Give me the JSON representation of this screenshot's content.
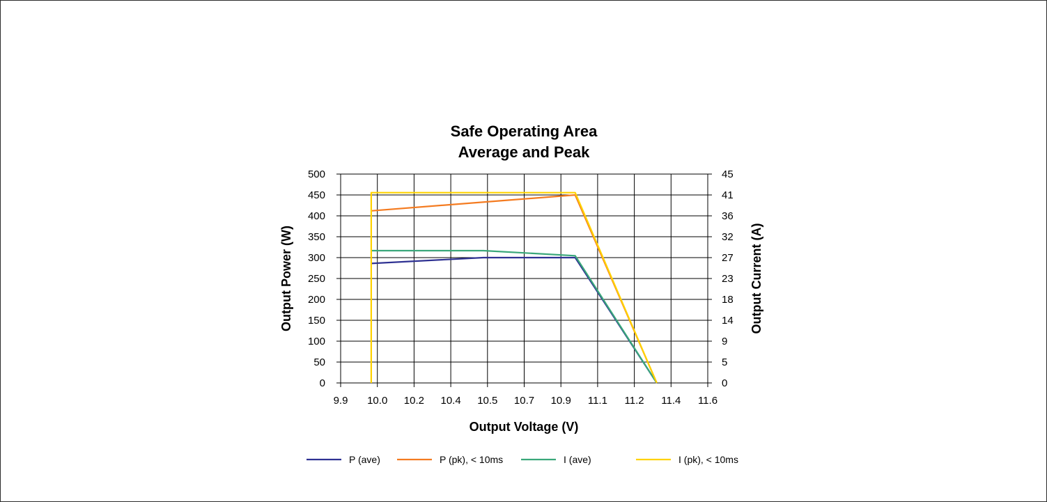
{
  "chart_data": {
    "type": "line",
    "title": [
      "Safe Operating Area",
      "Average and Peak"
    ],
    "xlabel": "Output Voltage (V)",
    "ylabel": "Output Power (W)",
    "y2label": "Output Current (A)",
    "x_tick_labels": [
      "9.9",
      "10.0",
      "10.2",
      "10.4",
      "10.5",
      "10.7",
      "10.9",
      "11.1",
      "11.2",
      "11.4",
      "11.6"
    ],
    "y_tick_labels": [
      "0",
      "50",
      "100",
      "150",
      "200",
      "250",
      "300",
      "350",
      "400",
      "450",
      "500"
    ],
    "y2_tick_labels": [
      "0",
      "5",
      "9",
      "14",
      "18",
      "23",
      "27",
      "32",
      "36",
      "41",
      "45"
    ],
    "xlim": [
      9.85,
      11.65
    ],
    "ylim": [
      0,
      500
    ],
    "y2lim": [
      0,
      45
    ],
    "grid": true,
    "legend_position": "bottom",
    "series": [
      {
        "name": "P (ave)",
        "color": "#2e3192",
        "axis": "left",
        "x": [
          10.0,
          10.55,
          11.0,
          11.4
        ],
        "y": [
          286,
          300,
          300,
          0
        ]
      },
      {
        "name": "P (pk), < 10ms",
        "color": "#f47b20",
        "axis": "left",
        "x": [
          10.0,
          11.0,
          11.4
        ],
        "y": [
          412,
          450,
          0
        ]
      },
      {
        "name": "I (ave)",
        "color": "#3aa77a",
        "axis": "right",
        "x": [
          10.0,
          10.55,
          11.0,
          11.4
        ],
        "y": [
          28.5,
          28.5,
          27.4,
          0
        ]
      },
      {
        "name": "I (pk), < 10ms",
        "color": "#ffd200",
        "axis": "right",
        "x": [
          10.0,
          10.0,
          11.0,
          11.4
        ],
        "y": [
          0,
          41,
          41,
          0
        ]
      }
    ]
  }
}
